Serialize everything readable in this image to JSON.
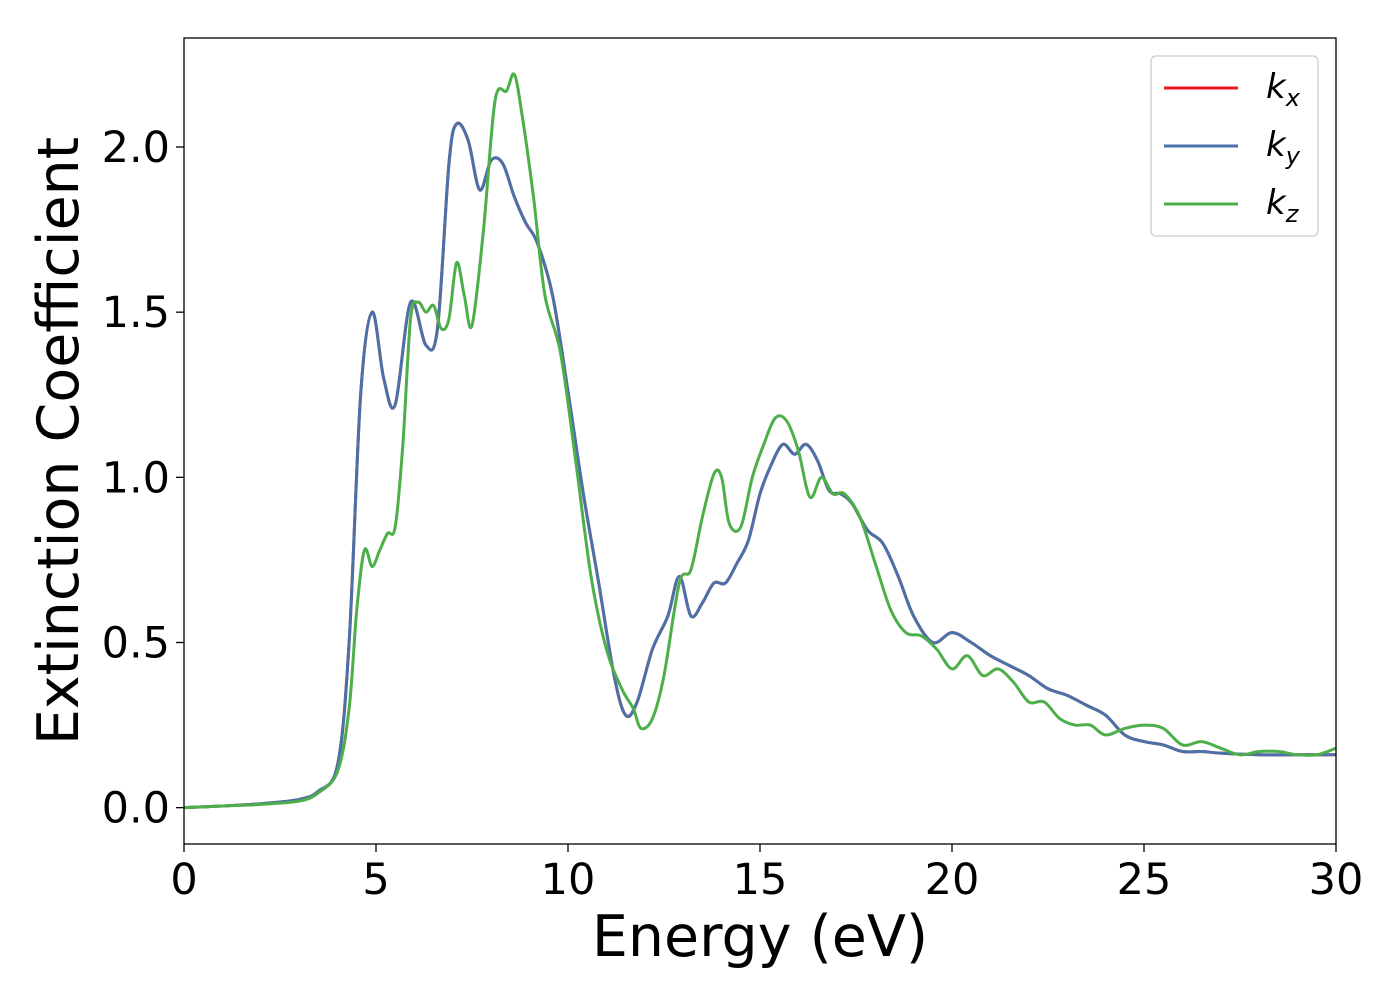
{
  "chart_data": {
    "type": "line",
    "title": "",
    "xlabel": "Energy (eV)",
    "ylabel": "Extinction Coefficient",
    "xlim": [
      0,
      30
    ],
    "ylim": [
      -0.11,
      2.33
    ],
    "xticks": [
      0,
      5,
      10,
      15,
      20,
      25,
      30
    ],
    "xtick_labels": [
      "0",
      "5",
      "10",
      "15",
      "20",
      "25",
      "30"
    ],
    "yticks": [
      0.0,
      0.5,
      1.0,
      1.5,
      2.0
    ],
    "ytick_labels": [
      "0.0",
      "0.5",
      "1.0",
      "1.5",
      "2.0"
    ],
    "grid": false,
    "legend_position": "top-right",
    "series": [
      {
        "name": "k",
        "subscript": "x",
        "color": "#e41a1c",
        "x": [
          0,
          1,
          2,
          3,
          3.5,
          4,
          4.3,
          4.6,
          4.9,
          5.2,
          5.5,
          5.9,
          6.3,
          6.6,
          6.9,
          7.1,
          7.4,
          7.7,
          8.0,
          8.3,
          8.6,
          8.9,
          9.2,
          9.6,
          10.0,
          10.4,
          10.8,
          11.2,
          11.5,
          11.8,
          12.2,
          12.6,
          12.9,
          13.2,
          13.5,
          13.8,
          14.1,
          14.4,
          14.7,
          15.0,
          15.3,
          15.6,
          15.9,
          16.2,
          16.5,
          16.8,
          17.1,
          17.4,
          17.8,
          18.2,
          18.6,
          19.0,
          19.5,
          20.0,
          20.5,
          21.0,
          21.5,
          22.0,
          22.5,
          23.0,
          23.5,
          24.0,
          24.5,
          25.0,
          25.5,
          26.0,
          26.5,
          27.0,
          28.0,
          29.0,
          30.0
        ],
        "y": [
          0.0,
          0.005,
          0.012,
          0.025,
          0.05,
          0.13,
          0.5,
          1.25,
          1.5,
          1.3,
          1.22,
          1.53,
          1.4,
          1.45,
          1.95,
          2.07,
          2.02,
          1.87,
          1.96,
          1.95,
          1.85,
          1.77,
          1.71,
          1.55,
          1.26,
          0.95,
          0.68,
          0.4,
          0.28,
          0.32,
          0.48,
          0.58,
          0.7,
          0.58,
          0.62,
          0.68,
          0.68,
          0.74,
          0.81,
          0.95,
          1.04,
          1.1,
          1.07,
          1.1,
          1.05,
          0.96,
          0.95,
          0.92,
          0.84,
          0.8,
          0.7,
          0.58,
          0.5,
          0.53,
          0.5,
          0.46,
          0.43,
          0.4,
          0.36,
          0.34,
          0.31,
          0.28,
          0.22,
          0.2,
          0.19,
          0.17,
          0.17,
          0.165,
          0.16,
          0.16,
          0.16
        ]
      },
      {
        "name": "k",
        "subscript": "y",
        "color": "#4a72a8",
        "x": [
          0,
          1,
          2,
          3,
          3.5,
          4,
          4.3,
          4.6,
          4.9,
          5.2,
          5.5,
          5.9,
          6.3,
          6.6,
          6.9,
          7.1,
          7.4,
          7.7,
          8.0,
          8.3,
          8.6,
          8.9,
          9.2,
          9.6,
          10.0,
          10.4,
          10.8,
          11.2,
          11.5,
          11.8,
          12.2,
          12.6,
          12.9,
          13.2,
          13.5,
          13.8,
          14.1,
          14.4,
          14.7,
          15.0,
          15.3,
          15.6,
          15.9,
          16.2,
          16.5,
          16.8,
          17.1,
          17.4,
          17.8,
          18.2,
          18.6,
          19.0,
          19.5,
          20.0,
          20.5,
          21.0,
          21.5,
          22.0,
          22.5,
          23.0,
          23.5,
          24.0,
          24.5,
          25.0,
          25.5,
          26.0,
          26.5,
          27.0,
          28.0,
          29.0,
          30.0
        ],
        "y": [
          0.0,
          0.005,
          0.012,
          0.025,
          0.05,
          0.13,
          0.5,
          1.25,
          1.5,
          1.3,
          1.22,
          1.53,
          1.4,
          1.45,
          1.95,
          2.07,
          2.02,
          1.87,
          1.96,
          1.95,
          1.85,
          1.77,
          1.71,
          1.55,
          1.26,
          0.95,
          0.68,
          0.4,
          0.28,
          0.32,
          0.48,
          0.58,
          0.7,
          0.58,
          0.62,
          0.68,
          0.68,
          0.74,
          0.81,
          0.95,
          1.04,
          1.1,
          1.07,
          1.1,
          1.05,
          0.96,
          0.95,
          0.92,
          0.84,
          0.8,
          0.7,
          0.58,
          0.5,
          0.53,
          0.5,
          0.46,
          0.43,
          0.4,
          0.36,
          0.34,
          0.31,
          0.28,
          0.22,
          0.2,
          0.19,
          0.17,
          0.17,
          0.165,
          0.16,
          0.16,
          0.16
        ]
      },
      {
        "name": "k",
        "subscript": "z",
        "color": "#4daf4a",
        "x": [
          0,
          1,
          2,
          3,
          3.5,
          4,
          4.3,
          4.5,
          4.7,
          4.9,
          5.1,
          5.3,
          5.5,
          5.7,
          5.9,
          6.1,
          6.3,
          6.5,
          6.7,
          6.9,
          7.1,
          7.3,
          7.5,
          7.8,
          8.1,
          8.4,
          8.6,
          8.8,
          9.1,
          9.4,
          9.8,
          10.2,
          10.6,
          11.0,
          11.4,
          11.7,
          11.9,
          12.2,
          12.5,
          12.9,
          13.2,
          13.5,
          13.8,
          14.0,
          14.2,
          14.5,
          14.8,
          15.1,
          15.4,
          15.7,
          16.0,
          16.3,
          16.6,
          16.9,
          17.2,
          17.6,
          18.0,
          18.4,
          18.8,
          19.2,
          19.6,
          20.0,
          20.4,
          20.8,
          21.2,
          21.6,
          22.0,
          22.4,
          22.8,
          23.2,
          23.6,
          24.0,
          24.5,
          25.0,
          25.5,
          26.0,
          26.5,
          27.0,
          27.5,
          28.0,
          28.5,
          29.0,
          29.5,
          30.0
        ],
        "y": [
          0.0,
          0.005,
          0.01,
          0.02,
          0.045,
          0.11,
          0.3,
          0.6,
          0.78,
          0.73,
          0.78,
          0.83,
          0.85,
          1.1,
          1.48,
          1.53,
          1.5,
          1.52,
          1.45,
          1.48,
          1.65,
          1.55,
          1.46,
          1.75,
          2.14,
          2.17,
          2.22,
          2.1,
          1.85,
          1.55,
          1.38,
          1.05,
          0.7,
          0.48,
          0.36,
          0.3,
          0.24,
          0.27,
          0.4,
          0.68,
          0.72,
          0.88,
          1.01,
          1.0,
          0.86,
          0.85,
          1.0,
          1.1,
          1.18,
          1.17,
          1.08,
          0.94,
          1.0,
          0.95,
          0.95,
          0.88,
          0.74,
          0.6,
          0.53,
          0.52,
          0.48,
          0.42,
          0.46,
          0.4,
          0.42,
          0.38,
          0.32,
          0.32,
          0.27,
          0.25,
          0.25,
          0.22,
          0.24,
          0.25,
          0.24,
          0.19,
          0.2,
          0.18,
          0.16,
          0.17,
          0.17,
          0.16,
          0.16,
          0.18
        ]
      }
    ]
  }
}
